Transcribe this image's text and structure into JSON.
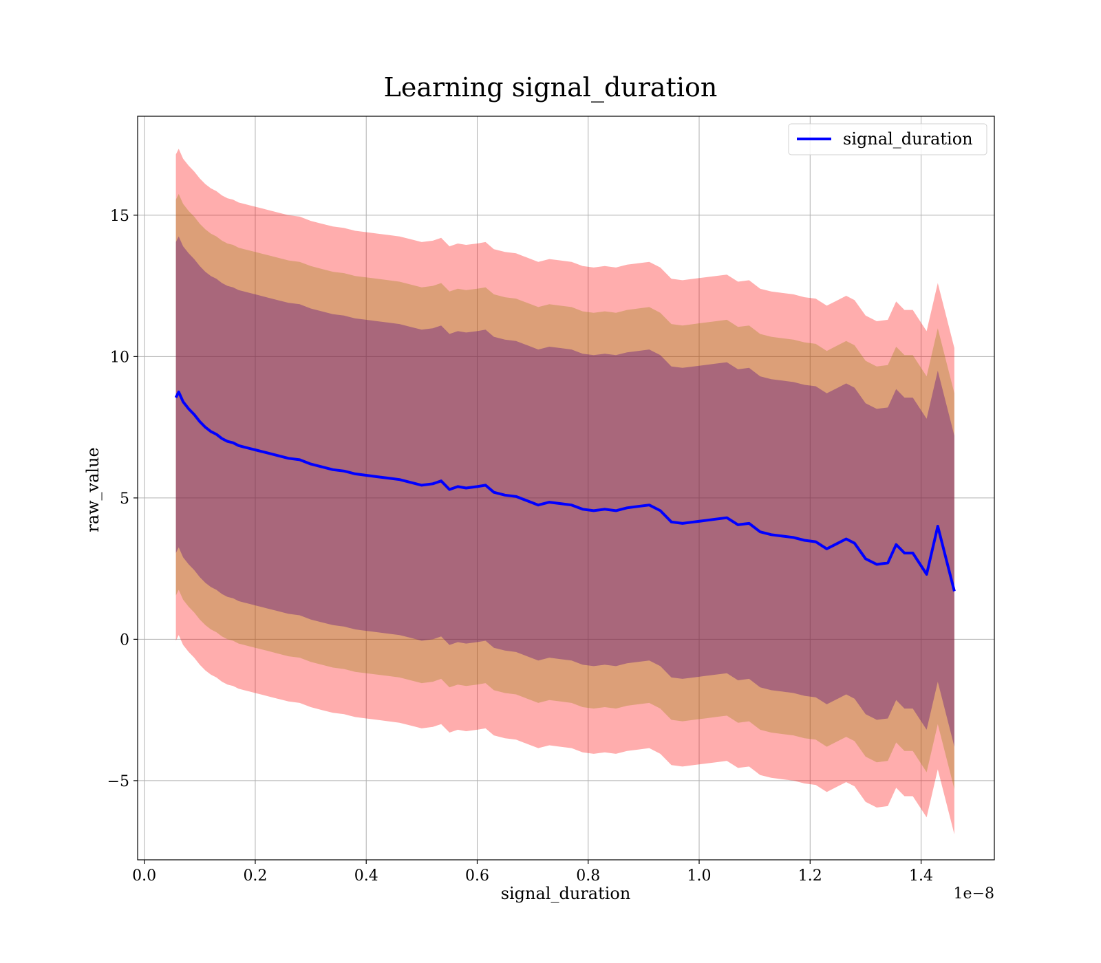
{
  "chart_data": {
    "type": "line",
    "title": "Learning signal_duration",
    "xlabel": "signal_duration",
    "ylabel": "raw_value",
    "x_offset_label": "1e−8",
    "xlim": [
      -0.012,
      1.532
    ],
    "ylim": [
      -7.8,
      18.5
    ],
    "grid": true,
    "legend_position": "upper right",
    "x_ticks": [
      0.0,
      0.2,
      0.4,
      0.6,
      0.8,
      1.0,
      1.2,
      1.4
    ],
    "x_tick_labels": [
      "0.0",
      "0.2",
      "0.4",
      "0.6",
      "0.8",
      "1.0",
      "1.2",
      "1.4"
    ],
    "y_ticks": [
      -5,
      0,
      5,
      10,
      15
    ],
    "y_tick_labels": [
      "−5",
      "0",
      "5",
      "10",
      "15"
    ],
    "colors": {
      "line": "#0000ff",
      "band_outer": "#ff0000",
      "band_middle": "#8b8000",
      "band_inner": "#4b0082"
    },
    "band_widths": {
      "inner": 5.5,
      "middle": 7.0,
      "outer": 8.6
    },
    "series": [
      {
        "name": "signal_duration",
        "x": [
          0.057,
          0.062,
          0.07,
          0.08,
          0.09,
          0.1,
          0.11,
          0.12,
          0.13,
          0.14,
          0.15,
          0.16,
          0.17,
          0.18,
          0.19,
          0.2,
          0.22,
          0.24,
          0.26,
          0.28,
          0.3,
          0.32,
          0.34,
          0.36,
          0.38,
          0.4,
          0.42,
          0.44,
          0.46,
          0.48,
          0.5,
          0.52,
          0.535,
          0.55,
          0.565,
          0.58,
          0.6,
          0.615,
          0.63,
          0.65,
          0.67,
          0.69,
          0.71,
          0.73,
          0.75,
          0.77,
          0.79,
          0.81,
          0.83,
          0.85,
          0.87,
          0.89,
          0.91,
          0.93,
          0.95,
          0.97,
          0.99,
          1.01,
          1.03,
          1.05,
          1.07,
          1.09,
          1.11,
          1.13,
          1.15,
          1.17,
          1.19,
          1.21,
          1.23,
          1.25,
          1.265,
          1.28,
          1.3,
          1.32,
          1.34,
          1.355,
          1.37,
          1.385,
          1.41,
          1.43,
          1.46
        ],
        "y": [
          8.55,
          8.75,
          8.4,
          8.15,
          7.95,
          7.7,
          7.5,
          7.35,
          7.25,
          7.1,
          7.0,
          6.95,
          6.85,
          6.8,
          6.75,
          6.7,
          6.6,
          6.5,
          6.4,
          6.35,
          6.2,
          6.1,
          6.0,
          5.95,
          5.85,
          5.8,
          5.75,
          5.7,
          5.65,
          5.55,
          5.45,
          5.5,
          5.6,
          5.3,
          5.4,
          5.35,
          5.4,
          5.45,
          5.2,
          5.1,
          5.05,
          4.9,
          4.75,
          4.85,
          4.8,
          4.75,
          4.6,
          4.55,
          4.6,
          4.55,
          4.65,
          4.7,
          4.75,
          4.55,
          4.15,
          4.1,
          4.15,
          4.2,
          4.25,
          4.3,
          4.05,
          4.1,
          3.8,
          3.7,
          3.65,
          3.6,
          3.5,
          3.45,
          3.2,
          3.4,
          3.55,
          3.4,
          2.85,
          2.65,
          2.7,
          3.35,
          3.05,
          3.05,
          2.3,
          4.0,
          1.7
        ]
      }
    ]
  }
}
